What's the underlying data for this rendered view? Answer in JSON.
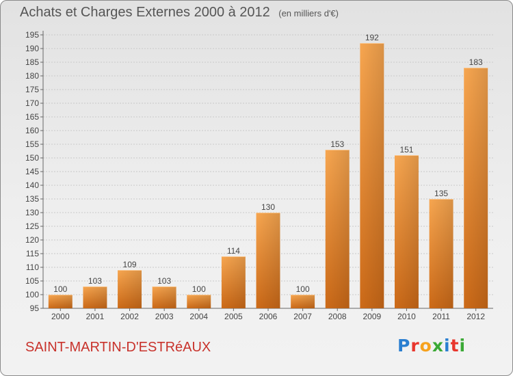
{
  "header": {
    "title": "Achats et Charges Externes 2000 à 2012",
    "unit": "(en milliers d'€)"
  },
  "footer": {
    "commune": "SAINT-MARTIN-D'ESTRéAUX",
    "logo_text": "Proxiti"
  },
  "colors": {
    "bar_light": "#f7a650",
    "bar_dark": "#cc6a18",
    "commune": "#c8322b",
    "logo": [
      "#2b7fd0",
      "#e8362d",
      "#f6a21e",
      "#3aa935",
      "#2b7fd0",
      "#e8362d",
      "#3aa935"
    ]
  },
  "chart_data": {
    "type": "bar",
    "title": "Achats et Charges Externes 2000 à 2012",
    "categories": [
      "2000",
      "2001",
      "2002",
      "2003",
      "2004",
      "2005",
      "2006",
      "2007",
      "2008",
      "2009",
      "2010",
      "2011",
      "2012"
    ],
    "values": [
      100,
      103,
      109,
      103,
      100,
      114,
      130,
      100,
      153,
      192,
      151,
      135,
      183
    ],
    "ylim": [
      95,
      195
    ],
    "yticks": [
      95,
      100,
      105,
      110,
      115,
      120,
      125,
      130,
      135,
      140,
      145,
      150,
      155,
      160,
      165,
      170,
      175,
      180,
      185,
      190,
      195
    ],
    "xlabel": "",
    "ylabel": "",
    "grid": true,
    "data_labels": true
  }
}
